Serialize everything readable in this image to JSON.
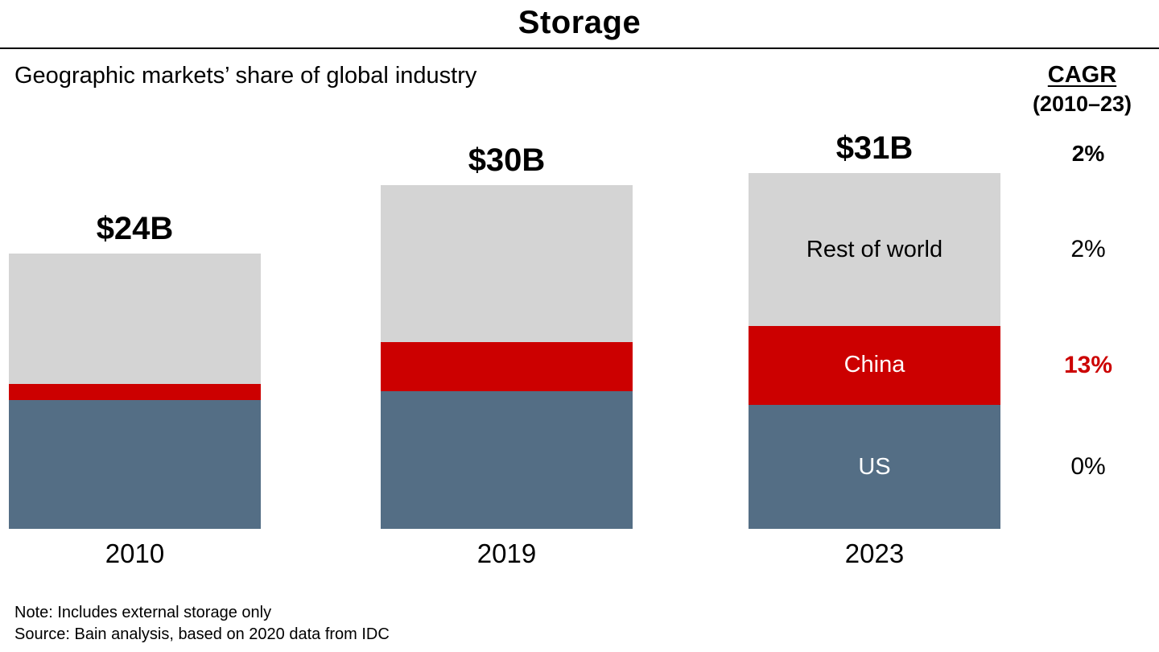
{
  "title": "Storage",
  "subtitle": "Geographic markets’ share of global industry",
  "cagr": {
    "header": "CAGR",
    "period": "(2010–23)",
    "total": {
      "label": "2%",
      "bold": true,
      "color": "#000000"
    },
    "rows": [
      {
        "series": "Rest of world",
        "label": "2%",
        "bold": false,
        "color": "#000000"
      },
      {
        "series": "China",
        "label": "13%",
        "bold": true,
        "color": "#cc0000"
      },
      {
        "series": "US",
        "label": "0%",
        "bold": false,
        "color": "#000000"
      }
    ]
  },
  "chart_data": {
    "type": "bar",
    "stacked": true,
    "title": "Storage",
    "subtitle": "Geographic markets’ share of global industry",
    "categories": [
      "2010",
      "2019",
      "2023"
    ],
    "totals": [
      24,
      30,
      31
    ],
    "total_labels": [
      "$24B",
      "$30B",
      "$31B"
    ],
    "series": [
      {
        "name": "Rest of world",
        "values": [
          11.4,
          13.7,
          13.3
        ],
        "color": "#d4d4d4",
        "label_color": "#000000"
      },
      {
        "name": "China",
        "values": [
          1.4,
          4.3,
          6.9
        ],
        "color": "#cc0000",
        "label_color": "#ffffff"
      },
      {
        "name": "US",
        "values": [
          11.2,
          12.0,
          10.8
        ],
        "color": "#546e85",
        "label_color": "#ffffff"
      }
    ],
    "labels_in_bar": "2023",
    "legend": "labels-inside-last-bar",
    "axis": "none",
    "unit_hint": "$B"
  },
  "footer": {
    "note": "Note: Includes external storage only",
    "source": "Source: Bain analysis, based on 2020 data from IDC"
  },
  "colors": {
    "rest_of_world": "#d4d4d4",
    "china": "#cc0000",
    "us": "#546e85",
    "cagr_highlight": "#cc0000",
    "text": "#000000"
  }
}
